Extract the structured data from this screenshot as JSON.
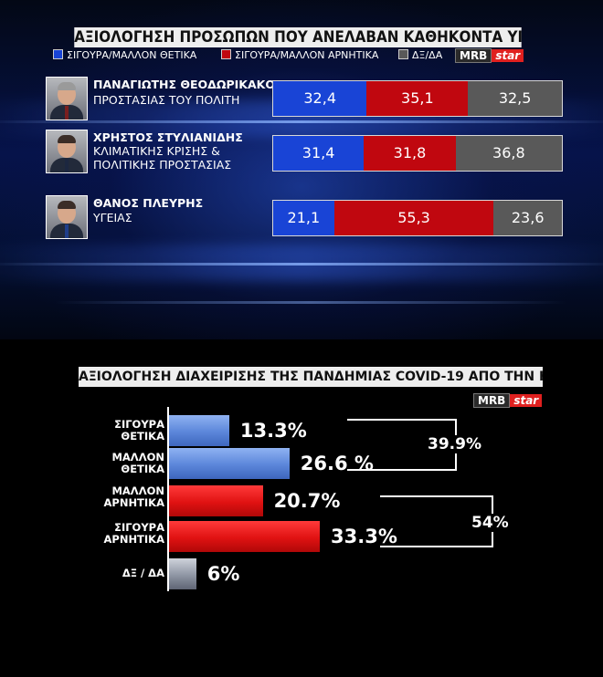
{
  "top": {
    "title": "ΑΞΙΟΛΟΓΗΣΗ ΠΡΟΣΩΠΩΝ ΠΟΥ ΑΝΕΛΑΒΑΝ ΚΑΘΗΚΟΝΤΑ ΥΠΟΥΡΓΟΥ",
    "legend": [
      {
        "label": "ΣΙΓΟΥΡΑ/ΜΑΛΛΟΝ ΘΕΤΙΚΑ",
        "color": "#1944d6"
      },
      {
        "label": "ΣΙΓΟΥΡΑ/ΜΑΛΛΟΝ ΑΡΝΗΤΙΚΑ",
        "color": "#c0070f"
      },
      {
        "label": "ΔΞ/ΔΑ",
        "color": "#595959"
      }
    ],
    "logo": {
      "mrb": "MRB",
      "star": "star"
    }
  },
  "bottom": {
    "title": "ΑΞΙΟΛΟΓΗΣΗ ΔΙΑΧΕΙΡΙΣΗΣ ΤΗΣ ΠΑΝΔΗΜΙΑΣ  COVID-19 ΑΠΟ ΤΗΝ ΚΥΒΕΡΝΗΣΗ",
    "logo": {
      "mrb": "MRB",
      "star": "star"
    }
  },
  "chart_data": [
    {
      "type": "bar",
      "stacked": true,
      "orientation": "horizontal",
      "title": "ΑΞΙΟΛΟΓΗΣΗ ΠΡΟΣΩΠΩΝ ΠΟΥ ΑΝΕΛΑΒΑΝ ΚΑΘΗΚΟΝΤΑ ΥΠΟΥΡΓΟΥ",
      "categories": [
        {
          "name": "ΠΑΝΑΓΙΩΤΗΣ ΘΕΟΔΩΡΙΚΑΚΟΣ",
          "role": [
            "ΠΡΟΣΤΑΣΙΑΣ ΤΟΥ ΠΟΛΙΤΗ"
          ]
        },
        {
          "name": "ΧΡΗΣΤΟΣ ΣΤΥΛΙΑΝΙΔΗΣ",
          "role": [
            "ΚΛΙΜΑΤΙΚΗΣ ΚΡΙΣΗΣ &",
            "ΠΟΛΙΤΙΚΗΣ ΠΡΟΣΤΑΣΙΑΣ"
          ]
        },
        {
          "name": "ΘΑΝΟΣ ΠΛΕΥΡΗΣ",
          "role": [
            "ΥΓΕΙΑΣ"
          ]
        }
      ],
      "series": [
        {
          "name": "ΣΙΓΟΥΡΑ/ΜΑΛΛΟΝ ΘΕΤΙΚΑ",
          "color": "#1944d6",
          "values": [
            32.4,
            31.4,
            21.1
          ],
          "labels": [
            "32,4",
            "31,4",
            "21,1"
          ]
        },
        {
          "name": "ΣΙΓΟΥΡΑ/ΜΑΛΛΟΝ ΑΡΝΗΤΙΚΑ",
          "color": "#c0070f",
          "values": [
            35.1,
            31.8,
            55.3
          ],
          "labels": [
            "35,1",
            "31,8",
            "55,3"
          ]
        },
        {
          "name": "ΔΞ/ΔΑ",
          "color": "#595959",
          "values": [
            32.5,
            36.8,
            23.6
          ],
          "labels": [
            "32,5",
            "36,8",
            "23,6"
          ]
        }
      ],
      "legend": "top"
    },
    {
      "type": "bar",
      "orientation": "horizontal",
      "title": "ΑΞΙΟΛΟΓΗΣΗ ΔΙΑΧΕΙΡΙΣΗΣ ΤΗΣ ΠΑΝΔΗΜΙΑΣ  COVID-19 ΑΠΟ ΤΗΝ ΚΥΒΕΡΝΗΣΗ",
      "categories": [
        [
          "ΣΙΓΟΥΡΑ",
          "ΘΕΤΙΚΑ"
        ],
        [
          "ΜΑΛΛΟΝ",
          "ΘΕΤΙΚΑ"
        ],
        [
          "ΜΑΛΛΟΝ",
          "ΑΡΝΗΤΙΚΑ"
        ],
        [
          "ΣΙΓΟΥΡΑ",
          "ΑΡΝΗΤΙΚΑ"
        ],
        [
          "ΔΞ / ΔΑ"
        ]
      ],
      "values": [
        13.3,
        26.6,
        20.7,
        33.3,
        6
      ],
      "value_labels": [
        "13.3%",
        "26.6 %",
        "20.7%",
        "33.3%",
        "6%"
      ],
      "colors": [
        "#5b86da",
        "#5b86da",
        "#e01212",
        "#e01212",
        "#8e95a3"
      ],
      "groups": [
        {
          "label": "39.9%",
          "rows": [
            0,
            1
          ]
        },
        {
          "label": "54%",
          "rows": [
            2,
            3
          ]
        }
      ],
      "xlim": [
        0,
        40
      ]
    }
  ]
}
